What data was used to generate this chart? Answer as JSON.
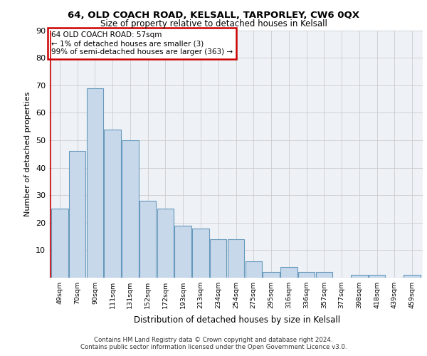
{
  "title1": "64, OLD COACH ROAD, KELSALL, TARPORLEY, CW6 0QX",
  "title2": "Size of property relative to detached houses in Kelsall",
  "xlabel": "Distribution of detached houses by size in Kelsall",
  "ylabel": "Number of detached properties",
  "categories": [
    "49sqm",
    "70sqm",
    "90sqm",
    "111sqm",
    "131sqm",
    "152sqm",
    "172sqm",
    "193sqm",
    "213sqm",
    "234sqm",
    "254sqm",
    "275sqm",
    "295sqm",
    "316sqm",
    "336sqm",
    "357sqm",
    "377sqm",
    "398sqm",
    "418sqm",
    "439sqm",
    "459sqm"
  ],
  "values": [
    25,
    46,
    69,
    54,
    50,
    28,
    25,
    19,
    18,
    14,
    14,
    6,
    2,
    4,
    2,
    2,
    0,
    1,
    1,
    0,
    1
  ],
  "bar_color": "#c8d8eb",
  "bar_edge_color": "#6699bb",
  "annotation_text": "64 OLD COACH ROAD: 57sqm\n← 1% of detached houses are smaller (3)\n99% of semi-detached houses are larger (363) →",
  "annotation_box_color": "#ffffff",
  "annotation_box_edge": "#cc0000",
  "footer1": "Contains HM Land Registry data © Crown copyright and database right 2024.",
  "footer2": "Contains public sector information licensed under the Open Government Licence v3.0.",
  "ylim": [
    0,
    90
  ],
  "yticks": [
    0,
    10,
    20,
    30,
    40,
    50,
    60,
    70,
    80,
    90
  ],
  "plot_bg": "#eef2f7",
  "grid_color": "#cccccc",
  "vline_color": "#cc0000"
}
